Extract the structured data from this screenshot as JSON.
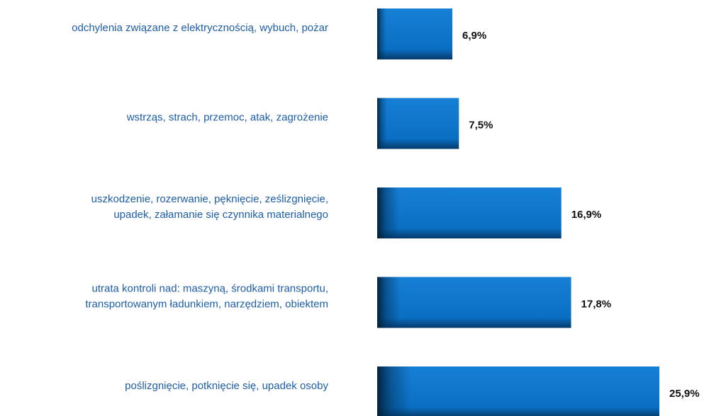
{
  "chart_data": {
    "type": "bar",
    "orientation": "horizontal",
    "categories": [
      [
        "odchylenia związane z elektrycznością, wybuch, pożar"
      ],
      [
        "wstrząs, strach, przemoc, atak, zagrożenie"
      ],
      [
        "uszkodzenie, rozerwanie, pęknięcie, ześlizgnięcie,",
        "upadek, załamanie się czynnika materialnego"
      ],
      [
        "utrata kontroli nad: maszyną, środkami transportu,",
        "transportowanym ładunkiem, narzędziem, obiektem"
      ],
      [
        "poślizgnięcie, potknięcie się, upadek osoby"
      ]
    ],
    "values": [
      6.9,
      7.5,
      16.9,
      17.8,
      25.9
    ],
    "value_labels": [
      "6,9%",
      "7,5%",
      "16,9%",
      "17,8%",
      "25,9%"
    ],
    "color": "#0a6fc2"
  }
}
